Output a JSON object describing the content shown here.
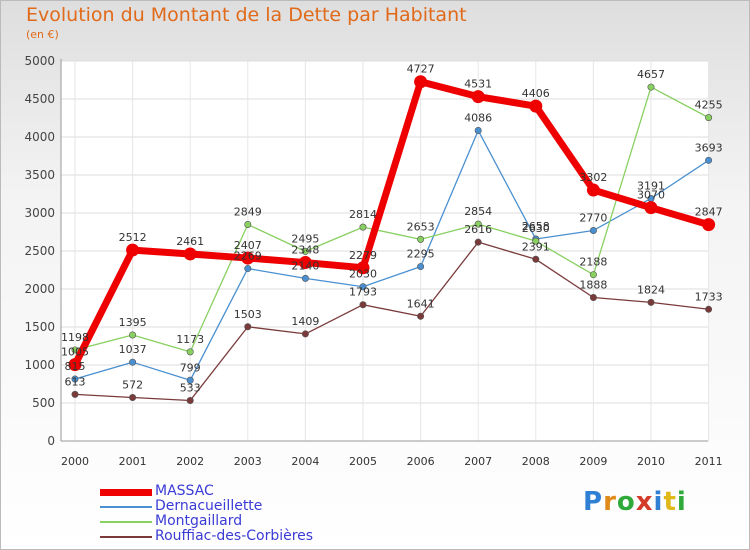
{
  "title": "Evolution du Montant de la Dette par Habitant",
  "subtitle": "(en €)",
  "logo_letters": [
    "P",
    "r",
    "o",
    "x",
    "i",
    "t",
    "i"
  ],
  "chart_data": {
    "type": "line",
    "title": "Evolution du Montant de la Dette par Habitant",
    "subtitle": "(en €)",
    "xlabel": "",
    "ylabel": "",
    "x": [
      "2000",
      "2001",
      "2002",
      "2003",
      "2004",
      "2005",
      "2006",
      "2007",
      "2008",
      "2009",
      "2010",
      "2011"
    ],
    "ylim": [
      0,
      5000
    ],
    "yticks": [
      "0",
      "500",
      "1000",
      "1500",
      "2000",
      "2500",
      "3000",
      "3500",
      "4000",
      "4500",
      "5000"
    ],
    "grid": true,
    "legend_position": "bottom-left",
    "series": [
      {
        "name": "MASSAC",
        "color": "#ee0000",
        "values": [
          1005,
          2512,
          2461,
          2407,
          2348,
          2279,
          4727,
          4531,
          4406,
          3302,
          3070,
          2847
        ]
      },
      {
        "name": "Dernacueillette",
        "color": "#4a90d0",
        "values": [
          815,
          1037,
          799,
          2269,
          2140,
          2030,
          2295,
          4086,
          2658,
          2770,
          3191,
          3693
        ]
      },
      {
        "name": "Montgaillard",
        "color": "#88d060",
        "values": [
          1198,
          1395,
          1173,
          2849,
          2495,
          2814,
          2653,
          2854,
          2630,
          2188,
          4657,
          4255
        ]
      },
      {
        "name": "Rouffiac-des-Corbières",
        "color": "#7a3a3a",
        "values": [
          613,
          572,
          533,
          1503,
          1409,
          1793,
          1641,
          2616,
          2391,
          1888,
          1824,
          1733
        ]
      }
    ]
  }
}
